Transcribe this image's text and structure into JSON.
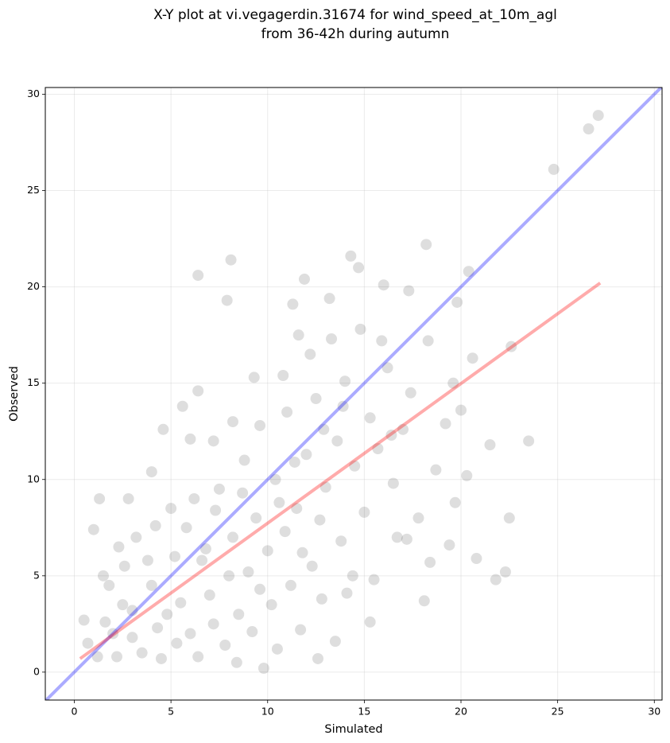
{
  "chart_data": {
    "type": "scatter",
    "title": [
      "X-Y plot at vi.vegagerdin.31674 for wind_speed_at_10m_agl",
      "from 36-42h during autumn"
    ],
    "x_label": "Simulated",
    "y_label": "Observed",
    "xlim": [
      -1.5,
      30.4
    ],
    "ylim": [
      -1.45,
      30.35
    ],
    "xticks": [
      0,
      5,
      10,
      15,
      20,
      25,
      30
    ],
    "yticks": [
      0,
      5,
      10,
      15,
      20,
      25,
      30
    ],
    "grid": true,
    "points": {
      "color": "#000000",
      "x": [
        27.1,
        26.6,
        24.8,
        18.2,
        14.3,
        8.1,
        6.4,
        11.9,
        16.0,
        22.6,
        23.5,
        21.5,
        22.5,
        22.3,
        21.8,
        20.8,
        18.1,
        1.3,
        15.3,
        12.6,
        9.8,
        20.4,
        19.8,
        17.3,
        13.2,
        7.9,
        11.3,
        14.7,
        20.6,
        19.6,
        5.6,
        4.6,
        6.4,
        4.0,
        2.8,
        1.0,
        1.5,
        0.5,
        0.7,
        1.2,
        2.2,
        2.0,
        3.0,
        4.0,
        3.5,
        4.5,
        5.5,
        6.0,
        6.6,
        5.2,
        7.0,
        7.8,
        8.5,
        9.0,
        8.2,
        9.4,
        10.0,
        10.5,
        11.2,
        11.7,
        12.3,
        12.8,
        13.5,
        14.1,
        7.5,
        6.2,
        8.8,
        9.6,
        10.4,
        11.0,
        11.5,
        12.0,
        12.5,
        13.0,
        13.6,
        14.0,
        14.5,
        15.0,
        15.3,
        15.7,
        16.2,
        16.5,
        17.0,
        17.4,
        17.8,
        18.3,
        18.7,
        19.2,
        19.7,
        20.0,
        20.3,
        15.9,
        14.8,
        13.3,
        12.2,
        11.6,
        10.8,
        9.3,
        8.2,
        7.2,
        6.0,
        5.0,
        4.2,
        3.2,
        2.3,
        1.8,
        2.6,
        3.8,
        4.8,
        5.8,
        6.8,
        7.3,
        8.0,
        8.7,
        9.2,
        10.2,
        10.9,
        11.8,
        12.7,
        13.8,
        14.4,
        15.5,
        16.7,
        17.2,
        18.4,
        19.4,
        3.0,
        1.6,
        2.5,
        4.3,
        5.3,
        6.4,
        7.2,
        8.4,
        9.6,
        10.6,
        11.4,
        12.9,
        13.9,
        16.4
      ],
      "y": [
        28.9,
        28.2,
        26.1,
        22.2,
        21.6,
        21.4,
        20.6,
        20.4,
        20.1,
        16.9,
        12.0,
        11.8,
        8.0,
        5.2,
        4.8,
        5.9,
        3.7,
        9.0,
        2.6,
        0.7,
        0.2,
        20.8,
        19.2,
        19.8,
        19.4,
        19.3,
        19.1,
        21.0,
        16.3,
        15.0,
        13.8,
        12.6,
        14.6,
        10.4,
        9.0,
        7.4,
        5.0,
        2.7,
        1.5,
        0.8,
        0.8,
        2.0,
        3.2,
        4.5,
        1.0,
        0.7,
        3.6,
        2.0,
        5.8,
        6.0,
        4.0,
        1.4,
        3.0,
        5.2,
        7.0,
        8.0,
        6.3,
        1.2,
        4.5,
        2.2,
        5.5,
        3.8,
        1.6,
        4.1,
        9.5,
        9.0,
        11.0,
        12.8,
        10.0,
        13.5,
        8.5,
        11.3,
        14.2,
        9.6,
        12.0,
        15.1,
        10.7,
        8.3,
        13.2,
        11.6,
        15.8,
        9.8,
        12.6,
        14.5,
        8.0,
        17.2,
        10.5,
        12.9,
        8.8,
        13.6,
        10.2,
        17.2,
        17.8,
        17.3,
        16.5,
        17.5,
        15.4,
        15.3,
        13.0,
        12.0,
        12.1,
        8.5,
        7.6,
        7.0,
        6.5,
        4.5,
        5.5,
        5.8,
        3.0,
        7.5,
        6.4,
        8.4,
        5.0,
        9.3,
        2.1,
        3.5,
        7.3,
        6.2,
        7.9,
        6.8,
        5.0,
        4.8,
        7.0,
        6.9,
        5.7,
        6.6,
        1.8,
        2.6,
        3.5,
        2.3,
        1.5,
        0.8,
        2.5,
        0.5,
        4.3,
        8.8,
        10.9,
        12.6,
        13.8,
        12.3
      ]
    },
    "lines": [
      {
        "color": "#0000ff",
        "x": [
          -1.5,
          30.4
        ],
        "y": [
          -1.5,
          30.4
        ]
      },
      {
        "color": "#ff0000",
        "x": [
          0.3,
          27.2
        ],
        "y": [
          0.7,
          20.2
        ]
      }
    ]
  }
}
